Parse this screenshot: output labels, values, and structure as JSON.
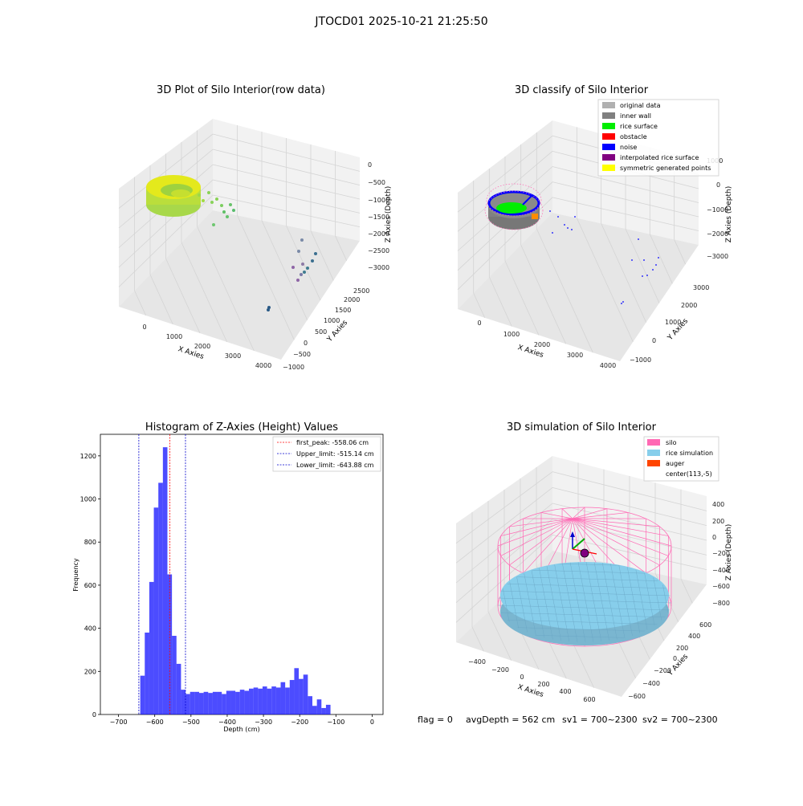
{
  "figure": {
    "suptitle": "JTOCD01 2025-10-21 21:25:50",
    "footer": {
      "flag": "flag = 0",
      "avgdepth": "avgDepth = 562 cm",
      "sv1": "sv1 = 700~2300",
      "sv2": "sv2 = 700~2300"
    }
  },
  "colors": {
    "original": "#b0b0b0",
    "inner_wall": "#808080",
    "rice_surface": "#00ee00",
    "obstacle": "#ff0000",
    "noise": "#0000ff",
    "interpolated": "#800080",
    "symmetric": "#ffff00",
    "silo": "#ff69b4",
    "rice_sim": "#87ceeb",
    "auger": "#ff4500",
    "hist_bar": "#0000ff"
  },
  "chart_data": [
    {
      "type": "scatter",
      "projection": "3d",
      "title": "3D Plot of Silo Interior(row data)",
      "xlabel": "X Axies",
      "ylabel": "Y Axies",
      "zlabel": "Z Axies (Depth)",
      "x_ticks": [
        "0",
        "1000",
        "2000",
        "3000",
        "4000"
      ],
      "y_ticks": [
        "−1000",
        "−500",
        "0",
        "500",
        "1000",
        "1500",
        "2000",
        "2500"
      ],
      "z_ticks": [
        "0",
        "−500",
        "−1000",
        "−1500",
        "−2000",
        "−2500",
        "−3000"
      ],
      "colormap": "viridis"
    },
    {
      "type": "scatter",
      "projection": "3d",
      "title": "3D classify of Silo Interior",
      "x_ticks": [
        "0",
        "1000",
        "2000",
        "3000",
        "4000"
      ],
      "y_ticks": [
        "−1000",
        "0",
        "1000",
        "2000",
        "3000"
      ],
      "z_ticks": [
        "1000",
        "0",
        "−1000",
        "−2000",
        "−3000"
      ],
      "xlabel": "X Axies",
      "ylabel": "Y Axies",
      "zlabel": "Z Axies (Depth)",
      "legend_position": "top-right",
      "legend": [
        "original data",
        "inner wall",
        "rice surface",
        "obstacle",
        "noise",
        "interpolated rice surface",
        "symmetric generated points"
      ]
    },
    {
      "type": "bar",
      "subtype": "histogram",
      "title": "Histogram of Z-Axies (Height) Values",
      "xlabel": "Depth (cm)",
      "ylabel": "Frequency",
      "xlim": [
        -750,
        30
      ],
      "ylim": [
        0,
        1300
      ],
      "x_ticks": [
        "−700",
        "−600",
        "−500",
        "−400",
        "−300",
        "−200",
        "−100",
        "0"
      ],
      "y_ticks": [
        "0",
        "200",
        "400",
        "600",
        "800",
        "1000",
        "1200"
      ],
      "bin_start": -640,
      "bin_width": 12.5,
      "values": [
        180,
        380,
        615,
        960,
        1075,
        1240,
        650,
        365,
        235,
        115,
        95,
        105,
        105,
        100,
        105,
        100,
        105,
        105,
        95,
        110,
        110,
        105,
        115,
        110,
        120,
        125,
        120,
        130,
        120,
        130,
        125,
        150,
        125,
        160,
        215,
        165,
        185,
        85,
        40,
        70,
        30,
        45
      ],
      "lines": [
        {
          "label": "first_peak: -558.06 cm",
          "x": -558.06,
          "color": "#ff0000"
        },
        {
          "label": "Upper_limit: -515.14 cm",
          "x": -515.14,
          "color": "#0000cc"
        },
        {
          "label": "Lower_limit: -643.88 cm",
          "x": -643.88,
          "color": "#0000cc"
        }
      ],
      "legend_position": "top-right"
    },
    {
      "type": "scatter",
      "projection": "3d",
      "title": "3D simulation of Silo Interior",
      "x_ticks": [
        "−400",
        "−200",
        "0",
        "200",
        "400",
        "600"
      ],
      "y_ticks": [
        "−600",
        "−400",
        "−200",
        "0",
        "200",
        "400",
        "600"
      ],
      "z_ticks": [
        "400",
        "200",
        "0",
        "−200",
        "−400",
        "−600",
        "−800"
      ],
      "xlabel": "X Axies",
      "ylabel": "Y Axies",
      "zlabel": "Z Axies (Depth)",
      "legend_position": "top-right",
      "legend": [
        "silo",
        "rice simulation",
        "auger",
        "center(113,-5)"
      ]
    }
  ]
}
